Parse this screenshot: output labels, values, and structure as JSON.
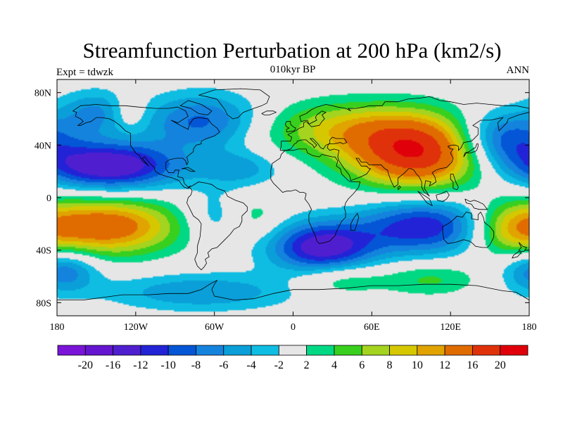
{
  "title": "Streamfunction Perturbation at 200 hPa (km2/s)",
  "left_label": "Expt = tdwzk",
  "center_label": "010kyr BP",
  "right_label": "ANN",
  "colors": {
    "land_outline": "#000000",
    "missing": "#e6e6e6"
  },
  "chart_data": {
    "type": "heatmap",
    "projection": "cylindrical-equidistant",
    "xlim": [
      -180,
      180
    ],
    "ylim": [
      -90,
      90
    ],
    "x_ticks": [
      {
        "value": -180,
        "label": "180"
      },
      {
        "value": -120,
        "label": "120W"
      },
      {
        "value": -60,
        "label": "60W"
      },
      {
        "value": 0,
        "label": "0"
      },
      {
        "value": 60,
        "label": "60E"
      },
      {
        "value": 120,
        "label": "120E"
      },
      {
        "value": 180,
        "label": "180"
      }
    ],
    "y_ticks": [
      {
        "value": 80,
        "label": "80N"
      },
      {
        "value": 40,
        "label": "40N"
      },
      {
        "value": 0,
        "label": "0"
      },
      {
        "value": -40,
        "label": "40S"
      },
      {
        "value": -80,
        "label": "80S"
      }
    ],
    "colorbar": {
      "levels": [
        -20,
        -16,
        -12,
        -10,
        -8,
        -6,
        -4,
        -2,
        2,
        4,
        6,
        8,
        10,
        12,
        16,
        20
      ],
      "labels": [
        "-20",
        "-16",
        "-12",
        "-10",
        "-8",
        "-6",
        "-4",
        "-2",
        "2",
        "4",
        "6",
        "8",
        "10",
        "12",
        "16",
        "20"
      ],
      "colors": [
        "#7a14d8",
        "#6515d0",
        "#4f1fcf",
        "#2223d6",
        "#0456d6",
        "#1483dd",
        "#0a9fd8",
        "#0fbde2",
        "#e6e6e6",
        "#00d884",
        "#38cf1f",
        "#a4d41f",
        "#d6c800",
        "#e0a300",
        "#e06c00",
        "#e0320a",
        "#e0000a"
      ]
    },
    "features": [
      {
        "lon": 22,
        "lat": -38,
        "amp": -14,
        "slon": 28,
        "slat": 14
      },
      {
        "lon": -140,
        "lat": 24,
        "amp": -15,
        "slon": 38,
        "slat": 13
      },
      {
        "lon": -145,
        "lat": -22,
        "amp": 15,
        "slon": 40,
        "slat": 15
      },
      {
        "lon": 95,
        "lat": 32,
        "amp": 18,
        "slon": 36,
        "slat": 18
      },
      {
        "lon": 50,
        "lat": 52,
        "amp": 9,
        "slon": 55,
        "slat": 15
      },
      {
        "lon": 100,
        "lat": -22,
        "amp": -12,
        "slon": 35,
        "slat": 15
      },
      {
        "lon": 158,
        "lat": 45,
        "amp": -11,
        "slon": 26,
        "slat": 15
      },
      {
        "lon": -68,
        "lat": 58,
        "amp": -9,
        "slon": 32,
        "slat": 15
      },
      {
        "lon": -175,
        "lat": -55,
        "amp": -8,
        "slon": 18,
        "slat": 12
      },
      {
        "lon": 35,
        "lat": -62,
        "amp": 5,
        "slon": 25,
        "slat": 9
      },
      {
        "lon": 105,
        "lat": -62,
        "amp": 4.5,
        "slon": 25,
        "slat": 9
      },
      {
        "lon": -70,
        "lat": -72,
        "amp": -6,
        "slon": 50,
        "slat": 10
      },
      {
        "lon": -40,
        "lat": 22,
        "amp": -5,
        "slon": 22,
        "slat": 10
      },
      {
        "lon": -60,
        "lat": -15,
        "amp": -4,
        "slon": 18,
        "slat": 14
      },
      {
        "lon": -30,
        "lat": -15,
        "amp": 3.5,
        "slon": 15,
        "slat": 12
      },
      {
        "lon": 165,
        "lat": -25,
        "amp": 6,
        "slon": 20,
        "slat": 15
      },
      {
        "lon": -150,
        "lat": 65,
        "amp": -6,
        "slon": 20,
        "slat": 12
      },
      {
        "lon": -125,
        "lat": 65,
        "amp": 4,
        "slon": 10,
        "slat": 10
      }
    ]
  }
}
